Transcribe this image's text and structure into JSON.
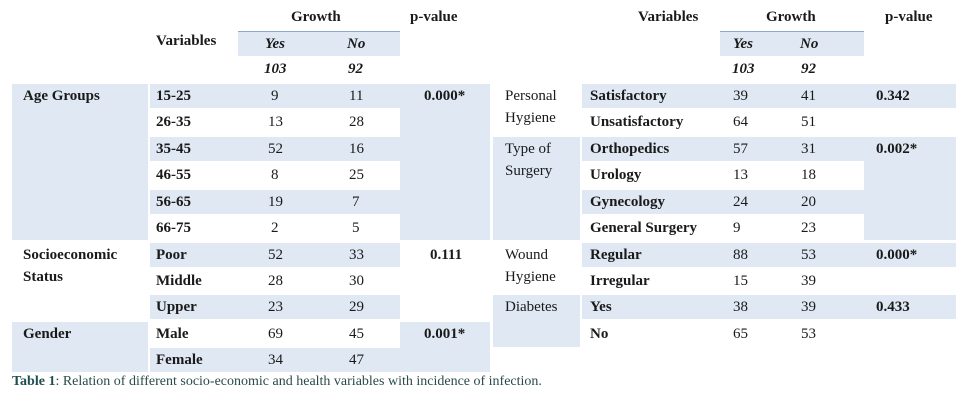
{
  "left_header": {
    "variables": "Variables",
    "growth": "Growth",
    "pvalue": "p-value",
    "yes": "Yes",
    "no": "No",
    "n_yes": "103",
    "n_no": "92"
  },
  "right_header": {
    "variables": "Variables",
    "growth": "Growth",
    "pvalue": "p-value",
    "yes": "Yes",
    "no": "No",
    "n_yes": "103",
    "n_no": "92"
  },
  "left": {
    "age_group": "Age Groups",
    "age_p": "0.000*",
    "age_rows": [
      {
        "label": "15-25",
        "yes": "9",
        "no": "11"
      },
      {
        "label": "26-35",
        "yes": "13",
        "no": "28"
      },
      {
        "label": "35-45",
        "yes": "52",
        "no": "16"
      },
      {
        "label": "46-55",
        "yes": "8",
        "no": "25"
      },
      {
        "label": "56-65",
        "yes": "19",
        "no": "7"
      },
      {
        "label": "66-75",
        "yes": "2",
        "no": "5"
      }
    ],
    "ses_group_l1": "Socioeconomic",
    "ses_group_l2": "Status",
    "ses_p": "0.111",
    "ses_rows": [
      {
        "label": "Poor",
        "yes": "52",
        "no": "33"
      },
      {
        "label": "Middle",
        "yes": "28",
        "no": "30"
      },
      {
        "label": "Upper",
        "yes": "23",
        "no": "29"
      }
    ],
    "gender_group": "Gender",
    "gender_p": "0.001*",
    "gender_rows": [
      {
        "label": "Male",
        "yes": "69",
        "no": "45"
      },
      {
        "label": "Female",
        "yes": "34",
        "no": "47"
      }
    ]
  },
  "right": {
    "hyg_l1": "Personal",
    "hyg_l2": "Hygiene",
    "hyg_p": "0.342",
    "hyg_rows": [
      {
        "label": "Satisfactory",
        "yes": "39",
        "no": "41"
      },
      {
        "label": "Unsatisfactory",
        "yes": "64",
        "no": "51"
      }
    ],
    "surg_l1": "Type of",
    "surg_l2": "Surgery",
    "surg_p": "0.002*",
    "surg_rows": [
      {
        "label": "Orthopedics",
        "yes": "57",
        "no": "31"
      },
      {
        "label": "Urology",
        "yes": "13",
        "no": "18"
      },
      {
        "label": "Gynecology",
        "yes": "24",
        "no": "20"
      },
      {
        "label": "General Surgery",
        "yes": "9",
        "no": "23"
      }
    ],
    "wound_l1": "Wound",
    "wound_l2": "Hygiene",
    "wound_p": "0.000*",
    "wound_rows": [
      {
        "label": "Regular",
        "yes": "88",
        "no": "53"
      },
      {
        "label": "Irregular",
        "yes": "15",
        "no": "39"
      }
    ],
    "diab_group": "Diabetes",
    "diab_p": "0.433",
    "diab_rows": [
      {
        "label": "Yes",
        "yes": "38",
        "no": "39"
      },
      {
        "label": "No",
        "yes": "65",
        "no": "53"
      }
    ]
  },
  "caption": {
    "label": "Table 1",
    "text": ": Relation of different socio-economic and health variables with incidence of infection."
  }
}
